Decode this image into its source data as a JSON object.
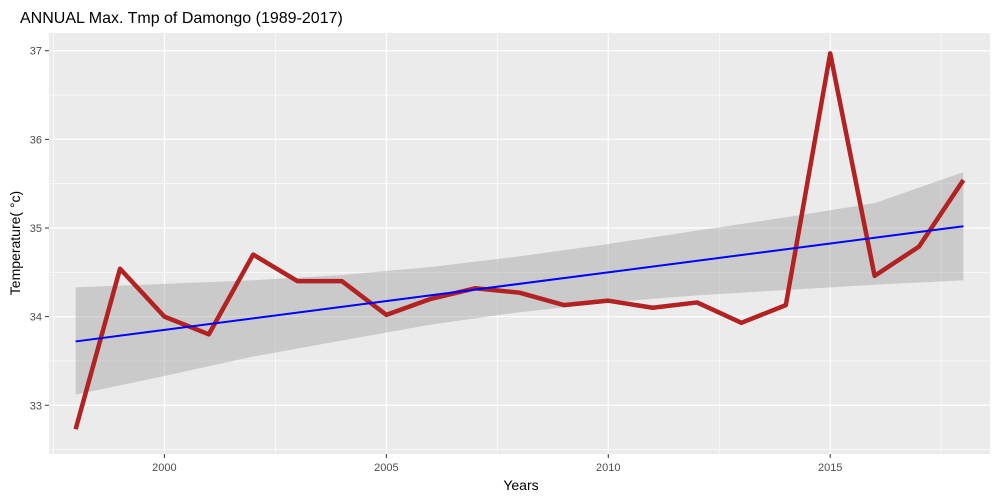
{
  "chart_data": {
    "type": "line",
    "title": "ANNUAL Max. Tmp of Damongo (1989-2017)",
    "xlabel": "Years",
    "ylabel": "Temperature( °c)",
    "xlim": [
      1997.4,
      2018.6
    ],
    "ylim": [
      32.45,
      37.2
    ],
    "x_ticks": [
      2000,
      2005,
      2010,
      2015
    ],
    "y_ticks": [
      33,
      34,
      35,
      36,
      37
    ],
    "grid": true,
    "series": [
      {
        "color": "#b22222",
        "x": [
          1998,
          1999,
          2000,
          2001,
          2002,
          2003,
          2004,
          2005,
          2006,
          2007,
          2008,
          2009,
          2010,
          2011,
          2012,
          2013,
          2014,
          2015,
          2016,
          2017,
          2018
        ],
        "y": [
          32.73,
          34.54,
          34.0,
          33.8,
          34.7,
          34.4,
          34.4,
          34.02,
          34.2,
          34.32,
          34.27,
          34.13,
          34.18,
          34.1,
          34.16,
          33.93,
          34.13,
          36.97,
          34.46,
          34.79,
          35.54
        ]
      }
    ],
    "trend": {
      "color": "#0000ff",
      "x": [
        1998,
        2018
      ],
      "y": [
        33.72,
        35.02
      ]
    },
    "confidence_band": {
      "color": "#999999",
      "x": [
        1998,
        2000,
        2002,
        2004,
        2006,
        2008,
        2010,
        2012,
        2014,
        2016,
        2018
      ],
      "upper": [
        34.33,
        34.37,
        34.41,
        34.47,
        34.56,
        34.68,
        34.82,
        34.97,
        35.12,
        35.28,
        35.63
      ],
      "lower": [
        33.12,
        33.33,
        33.55,
        33.73,
        33.91,
        34.05,
        34.16,
        34.24,
        34.3,
        34.36,
        34.41
      ]
    }
  }
}
